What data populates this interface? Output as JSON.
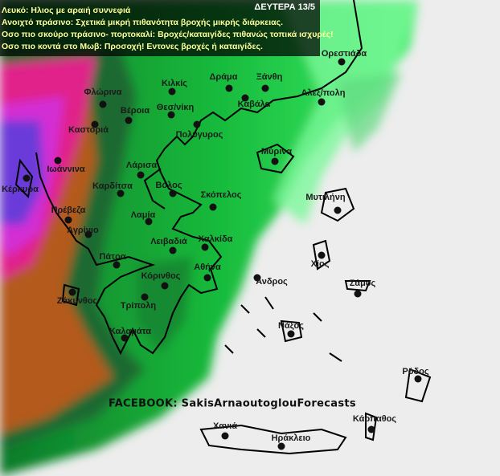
{
  "header": {
    "date": "ΔΕΥΤΕΡΑ 13/5",
    "legend": [
      "Λευκό: Ηλιος με αραιή συννεφιά",
      "Ανοιχτό πράσινο: Σχετικά μικρή πιθανότητα βροχής μικρής διάρκειας.",
      "Οσο πιο σκούρο πράσινο- πορτοκαλί: Βροχές/καταιγίδες πιθανώς τοπικά ισχυρές!",
      "Οσο πιο κοντά στο Μωβ: Προσοχή! Εντονες βροχές ή καταιγίδες."
    ]
  },
  "cities": [
    "Ορεστιάδα",
    "Δράμα",
    "Ξάνθη",
    "Κιλκίς",
    "Φλώρινα",
    "Αλεξ/πολη",
    "Βέροια",
    "Θεσ/νίκη",
    "Καβάλα",
    "Καστοριά",
    "Πολύγυρος",
    "Μύρινα",
    "Ιωάννινα",
    "Λάρισα",
    "Κέρκυρα",
    "Καρδίτσα",
    "Βόλος",
    "Σκόπελος",
    "Μυτιλήνη",
    "Πρέβεζα",
    "Λαμία",
    "Αγρίνιο",
    "Λειβαδιά",
    "Χαλκίδα",
    "Πάτρα",
    "Χίος",
    "Αθήνα",
    "Κόρινθος",
    "Άνδρος",
    "Σάμος",
    "Ζάκυνθος",
    "Τρίπολη",
    "Νάξος",
    "Καλαμάτα",
    "Ρόδος",
    "Κάρπαθος",
    "Χανιά",
    "Ηράκλειο"
  ],
  "footer": "FACEBOOK: SakisArnaoutoglouForecasts"
}
